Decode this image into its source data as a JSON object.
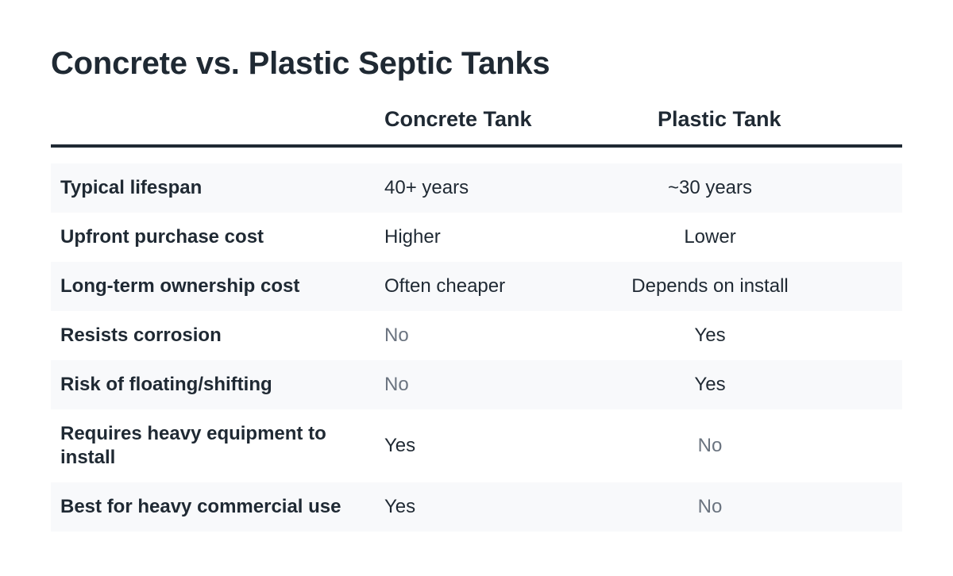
{
  "title": "Concrete vs. Plastic Septic Tanks",
  "columns": {
    "concrete": "Concrete Tank",
    "plastic": "Plastic Tank"
  },
  "rows": [
    {
      "label": "Typical lifespan",
      "concrete": "40+ years",
      "plastic": "~30 years"
    },
    {
      "label": "Upfront purchase cost",
      "concrete": "Higher",
      "plastic": "Lower"
    },
    {
      "label": "Long-term ownership cost",
      "concrete": "Often cheaper",
      "plastic": "Depends on install"
    },
    {
      "label": "Resists corrosion",
      "concrete": "No",
      "plastic": "Yes"
    },
    {
      "label": "Risk of floating/shifting",
      "concrete": "No",
      "plastic": "Yes"
    },
    {
      "label": "Requires heavy equipment to install",
      "concrete": "Yes",
      "plastic": "No"
    },
    {
      "label": "Best for heavy commercial use",
      "concrete": "Yes",
      "plastic": "No"
    }
  ],
  "colors": {
    "text": "#1f2933",
    "muted": "#6b7480",
    "row_shade": "#f8f9fb",
    "rule": "#1f2933"
  }
}
